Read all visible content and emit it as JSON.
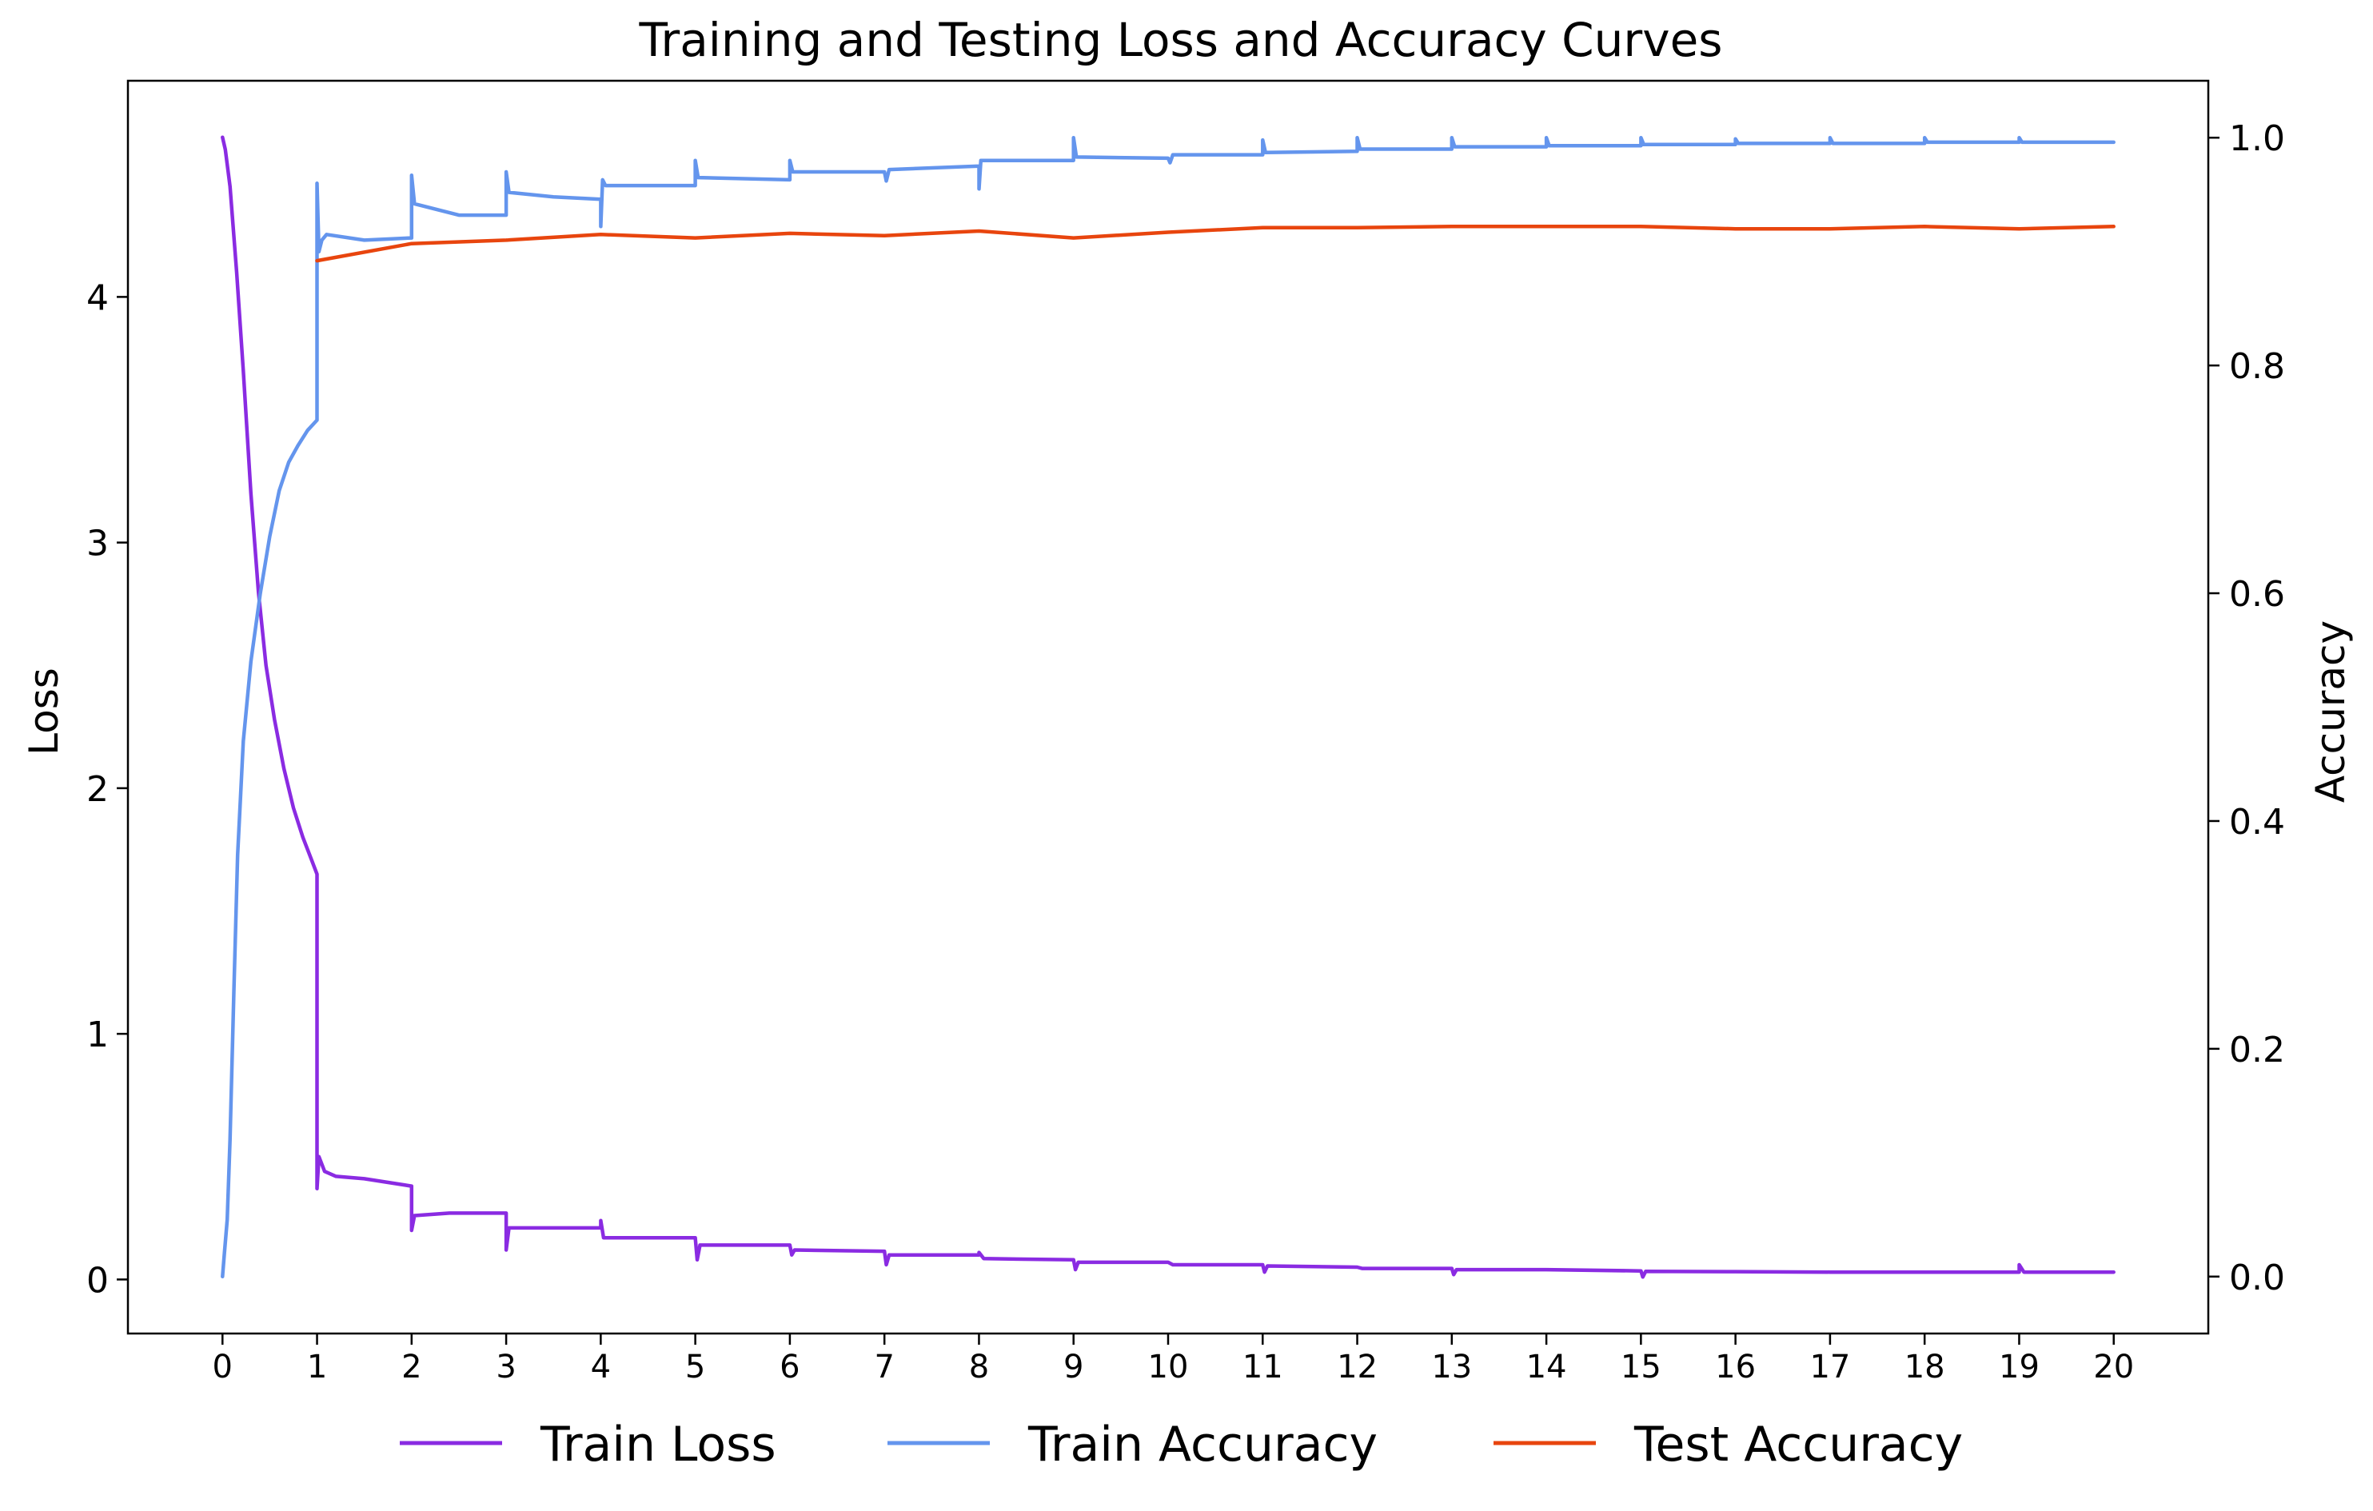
{
  "chart_data": {
    "type": "line",
    "title": "Training and Testing Loss and Accuracy Curves",
    "xlabel": "",
    "ylabel_left": "Loss",
    "ylabel_right": "Accuracy",
    "xlim": [
      -1,
      21
    ],
    "ylim_left": [
      -0.22,
      4.88
    ],
    "ylim_right": [
      -0.05,
      1.05
    ],
    "x_ticks": [
      "0",
      "1",
      "2",
      "3",
      "4",
      "5",
      "6",
      "7",
      "8",
      "9",
      "10",
      "11",
      "12",
      "13",
      "14",
      "15",
      "16",
      "17",
      "18",
      "19",
      "20"
    ],
    "y_ticks_left": [
      "0",
      "1",
      "2",
      "3",
      "4"
    ],
    "y_ticks_right": [
      "0.0",
      "0.2",
      "0.4",
      "0.6",
      "0.8",
      "1.0"
    ],
    "grid": false,
    "legend": {
      "placement": "bottom-center, below axes",
      "entries": [
        "Train Loss",
        "Train Accuracy",
        "Test Accuracy"
      ]
    },
    "series": [
      {
        "name": "Train Loss",
        "axis": "left",
        "color": "#8a2be2",
        "points": [
          [
            0,
            4.65
          ],
          [
            0.03,
            4.6
          ],
          [
            0.08,
            4.45
          ],
          [
            0.15,
            4.1
          ],
          [
            0.22,
            3.7
          ],
          [
            0.3,
            3.2
          ],
          [
            0.38,
            2.8
          ],
          [
            0.46,
            2.5
          ],
          [
            0.55,
            2.28
          ],
          [
            0.65,
            2.08
          ],
          [
            0.75,
            1.92
          ],
          [
            0.85,
            1.8
          ],
          [
            0.93,
            1.72
          ],
          [
            1.0,
            1.65
          ],
          [
            1.0,
            0.37
          ],
          [
            1.02,
            0.5
          ],
          [
            1.08,
            0.44
          ],
          [
            1.2,
            0.42
          ],
          [
            1.5,
            0.41
          ],
          [
            2.0,
            0.38
          ],
          [
            2.0,
            0.2
          ],
          [
            2.03,
            0.26
          ],
          [
            2.4,
            0.27
          ],
          [
            3.0,
            0.27
          ],
          [
            3.0,
            0.12
          ],
          [
            3.03,
            0.21
          ],
          [
            3.5,
            0.21
          ],
          [
            4.0,
            0.21
          ],
          [
            4.0,
            0.24
          ],
          [
            4.03,
            0.17
          ],
          [
            5.0,
            0.17
          ],
          [
            5.02,
            0.08
          ],
          [
            5.05,
            0.14
          ],
          [
            6.0,
            0.14
          ],
          [
            6.02,
            0.1
          ],
          [
            6.05,
            0.12
          ],
          [
            7.0,
            0.115
          ],
          [
            7.02,
            0.06
          ],
          [
            7.05,
            0.1
          ],
          [
            8.0,
            0.1
          ],
          [
            8.0,
            0.11
          ],
          [
            8.05,
            0.085
          ],
          [
            9.0,
            0.08
          ],
          [
            9.02,
            0.04
          ],
          [
            9.05,
            0.07
          ],
          [
            10.0,
            0.07
          ],
          [
            10.05,
            0.06
          ],
          [
            11.0,
            0.06
          ],
          [
            11.02,
            0.03
          ],
          [
            11.05,
            0.055
          ],
          [
            12.0,
            0.05
          ],
          [
            12.05,
            0.045
          ],
          [
            13.0,
            0.045
          ],
          [
            13.02,
            0.02
          ],
          [
            13.05,
            0.04
          ],
          [
            14.0,
            0.04
          ],
          [
            15.0,
            0.035
          ],
          [
            15.02,
            0.01
          ],
          [
            15.05,
            0.033
          ],
          [
            16.0,
            0.032
          ],
          [
            17.0,
            0.03
          ],
          [
            18.0,
            0.03
          ],
          [
            19.0,
            0.03
          ],
          [
            19.0,
            0.06
          ],
          [
            19.05,
            0.03
          ],
          [
            20.0,
            0.03
          ]
        ]
      },
      {
        "name": "Train Accuracy",
        "axis": "right",
        "color": "#6495ed",
        "points": [
          [
            0,
            0.0
          ],
          [
            0.02,
            0.02
          ],
          [
            0.05,
            0.05
          ],
          [
            0.08,
            0.12
          ],
          [
            0.12,
            0.25
          ],
          [
            0.16,
            0.37
          ],
          [
            0.22,
            0.47
          ],
          [
            0.3,
            0.54
          ],
          [
            0.4,
            0.6
          ],
          [
            0.5,
            0.65
          ],
          [
            0.6,
            0.69
          ],
          [
            0.7,
            0.715
          ],
          [
            0.8,
            0.73
          ],
          [
            0.9,
            0.743
          ],
          [
            1.0,
            0.752
          ],
          [
            1.0,
            0.96
          ],
          [
            1.02,
            0.9
          ],
          [
            1.05,
            0.91
          ],
          [
            1.1,
            0.915
          ],
          [
            1.5,
            0.91
          ],
          [
            2.0,
            0.912
          ],
          [
            2.0,
            0.967
          ],
          [
            2.03,
            0.942
          ],
          [
            2.5,
            0.932
          ],
          [
            3.0,
            0.932
          ],
          [
            3.0,
            0.97
          ],
          [
            3.03,
            0.952
          ],
          [
            3.5,
            0.948
          ],
          [
            4.0,
            0.946
          ],
          [
            4.0,
            0.922
          ],
          [
            4.02,
            0.963
          ],
          [
            4.05,
            0.958
          ],
          [
            5.0,
            0.958
          ],
          [
            5.0,
            0.98
          ],
          [
            5.03,
            0.965
          ],
          [
            6.0,
            0.963
          ],
          [
            6.0,
            0.98
          ],
          [
            6.03,
            0.97
          ],
          [
            7.0,
            0.97
          ],
          [
            7.02,
            0.962
          ],
          [
            7.05,
            0.972
          ],
          [
            8.0,
            0.975
          ],
          [
            8.0,
            0.955
          ],
          [
            8.02,
            0.98
          ],
          [
            9.0,
            0.98
          ],
          [
            9.0,
            1.0
          ],
          [
            9.03,
            0.983
          ],
          [
            10.0,
            0.982
          ],
          [
            10.02,
            0.978
          ],
          [
            10.05,
            0.985
          ],
          [
            11.0,
            0.985
          ],
          [
            11.0,
            0.998
          ],
          [
            11.03,
            0.987
          ],
          [
            12.0,
            0.988
          ],
          [
            12.0,
            1.0
          ],
          [
            12.03,
            0.99
          ],
          [
            13.0,
            0.99
          ],
          [
            13.0,
            1.0
          ],
          [
            13.03,
            0.992
          ],
          [
            14.0,
            0.992
          ],
          [
            14.0,
            1.0
          ],
          [
            14.03,
            0.993
          ],
          [
            15.0,
            0.993
          ],
          [
            15.0,
            1.0
          ],
          [
            15.03,
            0.994
          ],
          [
            16.0,
            0.994
          ],
          [
            16.0,
            0.999
          ],
          [
            16.03,
            0.995
          ],
          [
            17.0,
            0.995
          ],
          [
            17.0,
            1.0
          ],
          [
            17.03,
            0.995
          ],
          [
            18.0,
            0.995
          ],
          [
            18.0,
            1.0
          ],
          [
            18.03,
            0.996
          ],
          [
            19.0,
            0.996
          ],
          [
            19.0,
            1.0
          ],
          [
            19.03,
            0.996
          ],
          [
            20.0,
            0.996
          ]
        ]
      },
      {
        "name": "Test Accuracy",
        "axis": "right",
        "color": "#e8450e",
        "points": [
          [
            1,
            0.892
          ],
          [
            2,
            0.907
          ],
          [
            3,
            0.91
          ],
          [
            4,
            0.915
          ],
          [
            5,
            0.912
          ],
          [
            6,
            0.916
          ],
          [
            7,
            0.914
          ],
          [
            8,
            0.918
          ],
          [
            9,
            0.912
          ],
          [
            10,
            0.917
          ],
          [
            11,
            0.921
          ],
          [
            12,
            0.921
          ],
          [
            13,
            0.922
          ],
          [
            14,
            0.922
          ],
          [
            15,
            0.922
          ],
          [
            16,
            0.92
          ],
          [
            17,
            0.92
          ],
          [
            18,
            0.922
          ],
          [
            19,
            0.92
          ],
          [
            20,
            0.922
          ]
        ]
      }
    ]
  }
}
